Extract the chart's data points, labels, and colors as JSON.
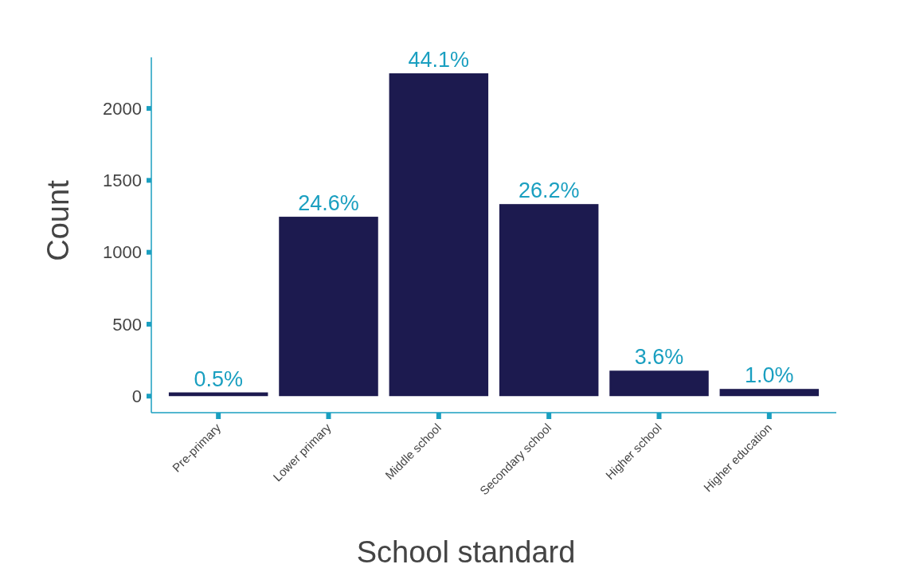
{
  "chart_data": {
    "type": "bar",
    "xlabel": "School standard",
    "ylabel": "Count",
    "categories": [
      "Pre-primary",
      "Lower primary",
      "Middle school",
      "Secondary school",
      "Higher school",
      "Higher education"
    ],
    "values": [
      26,
      1247,
      2244,
      1335,
      177,
      50
    ],
    "annotations": [
      {
        "text": "0.5%",
        "x": "Pre-primary",
        "y": 26
      },
      {
        "text": "24.6%",
        "x": "Lower primary",
        "y": 1247
      },
      {
        "text": "44.1%",
        "x": "Middle school",
        "y": 2244
      },
      {
        "text": "26.2%",
        "x": "Secondary school",
        "y": 1335
      },
      {
        "text": "3.6%",
        "x": "Higher school",
        "y": 177
      },
      {
        "text": "1.0%",
        "x": "Higher education",
        "y": 50
      }
    ],
    "color": "#1c1a4f",
    "ylim": [
      -115,
      2355
    ],
    "yticks": [
      0,
      500,
      1000,
      1500,
      2000
    ]
  }
}
